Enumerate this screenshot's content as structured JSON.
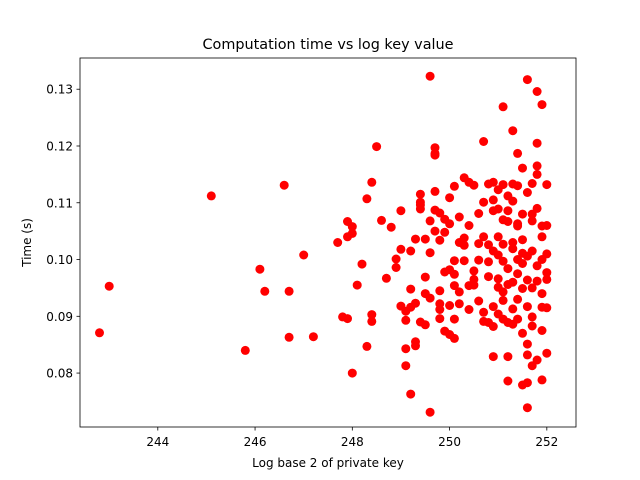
{
  "chart_data": {
    "type": "scatter",
    "title": "Computation time vs log key value",
    "xlabel": "Log base 2 of private key",
    "ylabel": "Time (s)",
    "xlim": [
      242.4,
      252.6
    ],
    "ylim": [
      0.0705,
      0.1355
    ],
    "xticks": [
      244,
      246,
      248,
      250,
      252
    ],
    "yticks": [
      0.08,
      0.09,
      0.1,
      0.11,
      0.12,
      0.13
    ],
    "xtick_labels": [
      "244",
      "246",
      "248",
      "250",
      "252"
    ],
    "ytick_labels": [
      "0.08",
      "0.09",
      "0.10",
      "0.11",
      "0.12",
      "0.13"
    ],
    "grid": false,
    "legend": "none",
    "marker_color": "#ff0000",
    "points": [
      [
        242.8,
        0.0871
      ],
      [
        243.0,
        0.0953
      ],
      [
        245.1,
        0.1112
      ],
      [
        245.8,
        0.084
      ],
      [
        246.1,
        0.0983
      ],
      [
        246.2,
        0.0944
      ],
      [
        246.6,
        0.1131
      ],
      [
        246.7,
        0.0944
      ],
      [
        246.7,
        0.0863
      ],
      [
        247.0,
        0.1008
      ],
      [
        247.2,
        0.0864
      ],
      [
        247.7,
        0.103
      ],
      [
        247.8,
        0.0899
      ],
      [
        247.9,
        0.0896
      ],
      [
        247.9,
        0.1067
      ],
      [
        247.9,
        0.104
      ],
      [
        248.0,
        0.1046
      ],
      [
        248.0,
        0.1058
      ],
      [
        248.0,
        0.08
      ],
      [
        248.1,
        0.0955
      ],
      [
        248.2,
        0.0992
      ],
      [
        248.3,
        0.1107
      ],
      [
        248.3,
        0.0847
      ],
      [
        248.4,
        0.0891
      ],
      [
        248.4,
        0.0903
      ],
      [
        248.4,
        0.1136
      ],
      [
        248.5,
        0.1199
      ],
      [
        248.6,
        0.1069
      ],
      [
        248.7,
        0.0967
      ],
      [
        248.8,
        0.1057
      ],
      [
        248.9,
        0.0986
      ],
      [
        248.9,
        0.1001
      ],
      [
        249.0,
        0.1018
      ],
      [
        249.0,
        0.0918
      ],
      [
        249.0,
        0.1086
      ],
      [
        249.1,
        0.0893
      ],
      [
        249.1,
        0.0843
      ],
      [
        249.1,
        0.0813
      ],
      [
        249.1,
        0.0909
      ],
      [
        249.2,
        0.0948
      ],
      [
        249.2,
        0.0916
      ],
      [
        249.2,
        0.1015
      ],
      [
        249.2,
        0.0763
      ],
      [
        249.3,
        0.0923
      ],
      [
        249.3,
        0.1036
      ],
      [
        249.3,
        0.0855
      ],
      [
        249.3,
        0.0848
      ],
      [
        249.4,
        0.1089
      ],
      [
        249.4,
        0.1096
      ],
      [
        249.4,
        0.1101
      ],
      [
        249.4,
        0.1115
      ],
      [
        249.4,
        0.089
      ],
      [
        249.5,
        0.0969
      ],
      [
        249.5,
        0.094
      ],
      [
        249.5,
        0.0885
      ],
      [
        249.5,
        0.1036
      ],
      [
        249.6,
        0.1323
      ],
      [
        249.6,
        0.1068
      ],
      [
        249.6,
        0.0932
      ],
      [
        249.6,
        0.0731
      ],
      [
        249.6,
        0.1012
      ],
      [
        249.7,
        0.112
      ],
      [
        249.7,
        0.105
      ],
      [
        249.7,
        0.1087
      ],
      [
        249.7,
        0.1197
      ],
      [
        249.7,
        0.1187
      ],
      [
        249.7,
        0.1184
      ],
      [
        249.8,
        0.1082
      ],
      [
        249.8,
        0.0896
      ],
      [
        249.8,
        0.0945
      ],
      [
        249.8,
        0.0912
      ],
      [
        249.8,
        0.1034
      ],
      [
        249.8,
        0.0922
      ],
      [
        249.9,
        0.0874
      ],
      [
        249.9,
        0.0978
      ],
      [
        249.9,
        0.1071
      ],
      [
        249.9,
        0.1048
      ],
      [
        250.0,
        0.0868
      ],
      [
        250.0,
        0.1063
      ],
      [
        250.0,
        0.0982
      ],
      [
        250.0,
        0.0919
      ],
      [
        250.0,
        0.1109
      ],
      [
        250.1,
        0.0998
      ],
      [
        250.1,
        0.0895
      ],
      [
        250.1,
        0.0954
      ],
      [
        250.1,
        0.0974
      ],
      [
        250.1,
        0.1129
      ],
      [
        250.1,
        0.0861
      ],
      [
        250.2,
        0.1075
      ],
      [
        250.2,
        0.103
      ],
      [
        250.2,
        0.0943
      ],
      [
        250.2,
        0.0922
      ],
      [
        250.3,
        0.1025
      ],
      [
        250.3,
        0.1038
      ],
      [
        250.3,
        0.1144
      ],
      [
        250.3,
        0.0998
      ],
      [
        250.4,
        0.106
      ],
      [
        250.4,
        0.0954
      ],
      [
        250.4,
        0.0912
      ],
      [
        250.4,
        0.1136
      ],
      [
        250.5,
        0.1131
      ],
      [
        250.5,
        0.0955
      ],
      [
        250.5,
        0.098
      ],
      [
        250.5,
        0.0965
      ],
      [
        250.6,
        0.0999
      ],
      [
        250.6,
        0.1081
      ],
      [
        250.6,
        0.1028
      ],
      [
        250.6,
        0.0927
      ],
      [
        250.7,
        0.1208
      ],
      [
        250.7,
        0.0907
      ],
      [
        250.7,
        0.0891
      ],
      [
        250.7,
        0.104
      ],
      [
        250.7,
        0.1101
      ],
      [
        250.8,
        0.1026
      ],
      [
        250.8,
        0.0996
      ],
      [
        250.8,
        0.097
      ],
      [
        250.8,
        0.1133
      ],
      [
        250.8,
        0.0889
      ],
      [
        250.9,
        0.1015
      ],
      [
        250.9,
        0.1086
      ],
      [
        250.9,
        0.0917
      ],
      [
        250.9,
        0.0882
      ],
      [
        250.9,
        0.1136
      ],
      [
        250.9,
        0.1105
      ],
      [
        250.9,
        0.0829
      ],
      [
        251.0,
        0.104
      ],
      [
        251.0,
        0.0951
      ],
      [
        251.0,
        0.0966
      ],
      [
        251.0,
        0.1008
      ],
      [
        251.0,
        0.1089
      ],
      [
        251.0,
        0.0904
      ],
      [
        251.0,
        0.1123
      ],
      [
        251.1,
        0.1269
      ],
      [
        251.1,
        0.0895
      ],
      [
        251.1,
        0.0997
      ],
      [
        251.1,
        0.1027
      ],
      [
        251.1,
        0.107
      ],
      [
        251.1,
        0.0928
      ],
      [
        251.1,
        0.0943
      ],
      [
        251.1,
        0.1132
      ],
      [
        251.2,
        0.1112
      ],
      [
        251.2,
        0.1086
      ],
      [
        251.2,
        0.0889
      ],
      [
        251.2,
        0.0786
      ],
      [
        251.2,
        0.0829
      ],
      [
        251.2,
        0.0984
      ],
      [
        251.2,
        0.1067
      ],
      [
        251.2,
        0.0956
      ],
      [
        251.3,
        0.103
      ],
      [
        251.3,
        0.1133
      ],
      [
        251.3,
        0.1227
      ],
      [
        251.3,
        0.1019
      ],
      [
        251.3,
        0.096
      ],
      [
        251.3,
        0.0886
      ],
      [
        251.3,
        0.0913
      ],
      [
        251.3,
        0.1103
      ],
      [
        251.4,
        0.1187
      ],
      [
        251.4,
        0.1063
      ],
      [
        251.4,
        0.1
      ],
      [
        251.4,
        0.0975
      ],
      [
        251.4,
        0.093
      ],
      [
        251.4,
        0.113
      ],
      [
        251.4,
        0.0895
      ],
      [
        251.4,
        0.1059
      ],
      [
        251.5,
        0.1161
      ],
      [
        251.5,
        0.0779
      ],
      [
        251.5,
        0.0949
      ],
      [
        251.5,
        0.0993
      ],
      [
        251.5,
        0.108
      ],
      [
        251.5,
        0.1035
      ],
      [
        251.5,
        0.087
      ],
      [
        251.5,
        0.1011
      ],
      [
        251.6,
        0.1317
      ],
      [
        251.6,
        0.0739
      ],
      [
        251.6,
        0.0783
      ],
      [
        251.6,
        0.0851
      ],
      [
        251.6,
        0.0917
      ],
      [
        251.6,
        0.0832
      ],
      [
        251.6,
        0.1006
      ],
      [
        251.6,
        0.1118
      ],
      [
        251.6,
        0.0964
      ],
      [
        251.7,
        0.1134
      ],
      [
        251.7,
        0.095
      ],
      [
        251.7,
        0.0883
      ],
      [
        251.7,
        0.1015
      ],
      [
        251.7,
        0.1068
      ],
      [
        251.7,
        0.108
      ],
      [
        251.7,
        0.0813
      ],
      [
        251.7,
        0.0899
      ],
      [
        251.8,
        0.1296
      ],
      [
        251.8,
        0.1205
      ],
      [
        251.8,
        0.1165
      ],
      [
        251.8,
        0.115
      ],
      [
        251.8,
        0.109
      ],
      [
        251.8,
        0.0823
      ],
      [
        251.8,
        0.0962
      ],
      [
        251.8,
        0.0989
      ],
      [
        251.9,
        0.1273
      ],
      [
        251.9,
        0.104
      ],
      [
        251.9,
        0.1
      ],
      [
        251.9,
        0.094
      ],
      [
        251.9,
        0.0875
      ],
      [
        251.9,
        0.0788
      ],
      [
        251.9,
        0.0916
      ],
      [
        251.9,
        0.1059
      ],
      [
        252.0,
        0.1132
      ],
      [
        252.0,
        0.106
      ],
      [
        252.0,
        0.101
      ],
      [
        252.0,
        0.0965
      ],
      [
        252.0,
        0.0915
      ],
      [
        252.0,
        0.0835
      ],
      [
        252.0,
        0.0977
      ]
    ]
  }
}
